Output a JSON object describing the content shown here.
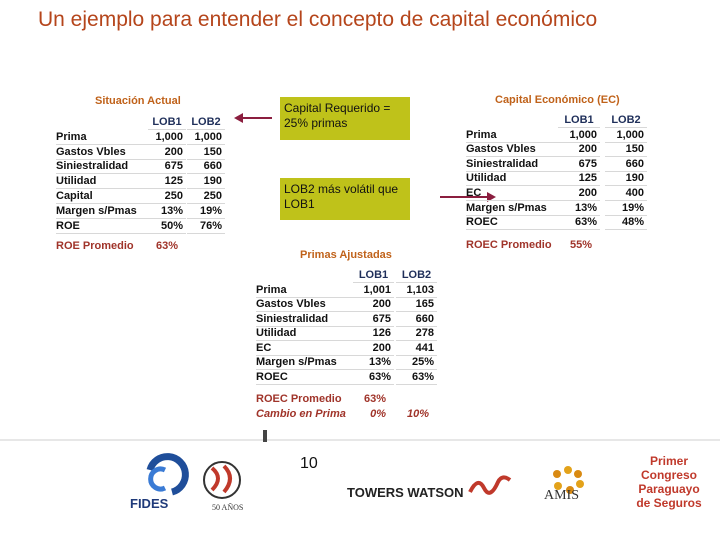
{
  "title": "Un ejemplo para entender el concepto de capital económico",
  "tables": [
    {
      "title": "Situación Actual",
      "header": [
        "LOB1",
        "LOB2"
      ],
      "rows": [
        [
          "Prima",
          "1,000",
          "1,000"
        ],
        [
          "Gastos Vbles",
          "200",
          "150"
        ],
        [
          "Siniestralidad",
          "675",
          "660"
        ],
        [
          "Utilidad",
          "125",
          "190"
        ],
        [
          "Capital",
          "250",
          "250"
        ],
        [
          "Margen s/Pmas",
          "13%",
          "19%"
        ],
        [
          "ROE",
          "50%",
          "76%"
        ]
      ],
      "summary": [
        [
          "ROE Promedio",
          "63%"
        ]
      ]
    },
    {
      "title": "Capital Económico (EC)",
      "header": [
        "LOB1",
        "LOB2"
      ],
      "rows": [
        [
          "Prima",
          "1,000",
          "1,000"
        ],
        [
          "Gastos Vbles",
          "200",
          "150"
        ],
        [
          "Siniestralidad",
          "675",
          "660"
        ],
        [
          "Utilidad",
          "125",
          "190"
        ],
        [
          "EC",
          "200",
          "400"
        ],
        [
          "Margen s/Pmas",
          "13%",
          "19%"
        ],
        [
          "ROEC",
          "63%",
          "48%"
        ]
      ],
      "summary": [
        [
          "ROEC Promedio",
          "55%"
        ]
      ]
    },
    {
      "title": "Primas Ajustadas",
      "header": [
        "LOB1",
        "LOB2"
      ],
      "rows": [
        [
          "Prima",
          "1,001",
          "1,103"
        ],
        [
          "Gastos Vbles",
          "200",
          "165"
        ],
        [
          "Siniestralidad",
          "675",
          "660"
        ],
        [
          "Utilidad",
          "126",
          "278"
        ],
        [
          "EC",
          "200",
          "441"
        ],
        [
          "Margen s/Pmas",
          "13%",
          "25%"
        ],
        [
          "ROEC",
          "63%",
          "63%"
        ]
      ],
      "summary": [
        [
          "ROEC Promedio",
          "63%"
        ],
        [
          "Cambio en Prima",
          "0%",
          "10%"
        ]
      ]
    }
  ],
  "notes": [
    "Capital Requerido = 25% primas",
    "LOB2 más volátil que LOB1"
  ],
  "page_number": "10",
  "logos": {
    "fides": "FIDES",
    "anniversary": "50 AÑOS",
    "towers": "TOWERS WATSON",
    "amis": "AMIS",
    "congress": [
      "Primer",
      "Congreso",
      "Paraguayo",
      "de Seguros"
    ]
  }
}
